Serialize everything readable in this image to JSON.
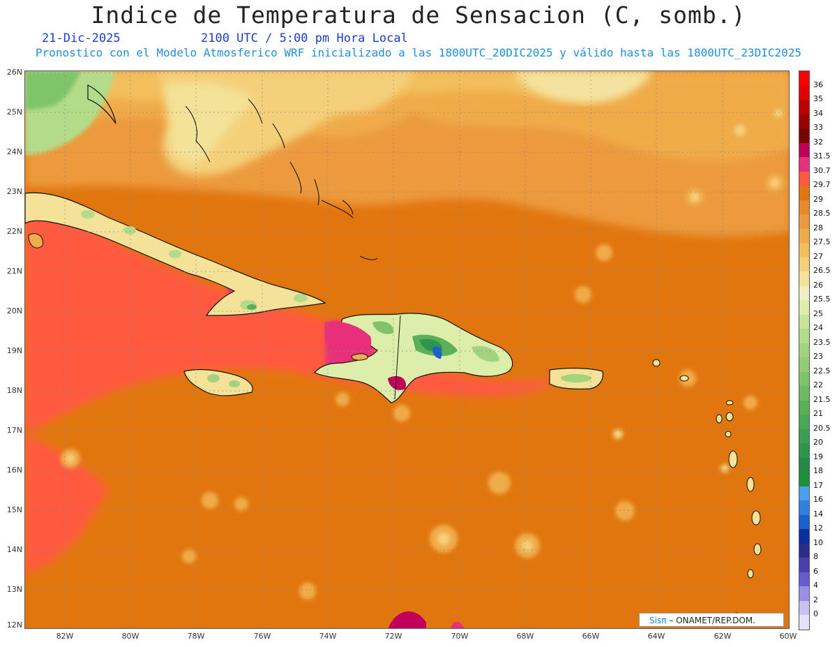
{
  "header": {
    "title": "Indice de Temperatura de Sensacion (C, somb.)",
    "date": "21-Dic-2025",
    "time": "2100 UTC / 5:00 pm Hora Local",
    "model_info": "Pronostico con el Modelo Atmosferico WRF inicializado a las 1800UTC_20DIC2025 y válido hasta las  1800UTC_23DIC2025"
  },
  "axes": {
    "lat_labels": [
      "26N",
      "25N",
      "24N",
      "23N",
      "22N",
      "21N",
      "20N",
      "19N",
      "18N",
      "17N",
      "16N",
      "15N",
      "14N",
      "13N",
      "12N"
    ],
    "lon_labels": [
      "82W",
      "80W",
      "78W",
      "76W",
      "74W",
      "72W",
      "70W",
      "68W",
      "66W",
      "64W",
      "62W",
      "60W"
    ]
  },
  "colorbar": {
    "levels": [
      "36",
      "35",
      "34",
      "33",
      "32",
      "31.5",
      "30.7",
      "29.7",
      "29",
      "28.5",
      "28",
      "27.5",
      "27",
      "26.5",
      "26",
      "25.5",
      "25",
      "24",
      "23.5",
      "23",
      "22.5",
      "22",
      "21.5",
      "21",
      "20.5",
      "20",
      "19",
      "18",
      "17",
      "16",
      "14",
      "12",
      "10",
      "8",
      "6",
      "4",
      "2",
      "0"
    ],
    "colors": [
      "#ff0000",
      "#e20000",
      "#bf0000",
      "#9c0000",
      "#7c0000",
      "#c0005a",
      "#e8307a",
      "#ff5a40",
      "#e2760e",
      "#e8892a",
      "#ec9a3c",
      "#f0ab4a",
      "#f3bf5d",
      "#f4d07a",
      "#f3e298",
      "#eeeec8",
      "#dceeaa",
      "#c6e49a",
      "#b3dc8a",
      "#a3d37e",
      "#92cc74",
      "#80c46a",
      "#6cba62",
      "#5bb05a",
      "#4aa856",
      "#3a9f52",
      "#2d954c",
      "#208a46",
      "#1b8f3b",
      "#4aa0f0",
      "#2f80e0",
      "#1a60cf",
      "#0b2f9f",
      "#2c2c8e",
      "#4b3fb0",
      "#6a5ad0",
      "#9b8ee8",
      "#c8c2f2",
      "#e4e2f8"
    ]
  },
  "credit": {
    "brand": "Sisπ",
    "text": "– ONAMET/REP.DOM."
  }
}
